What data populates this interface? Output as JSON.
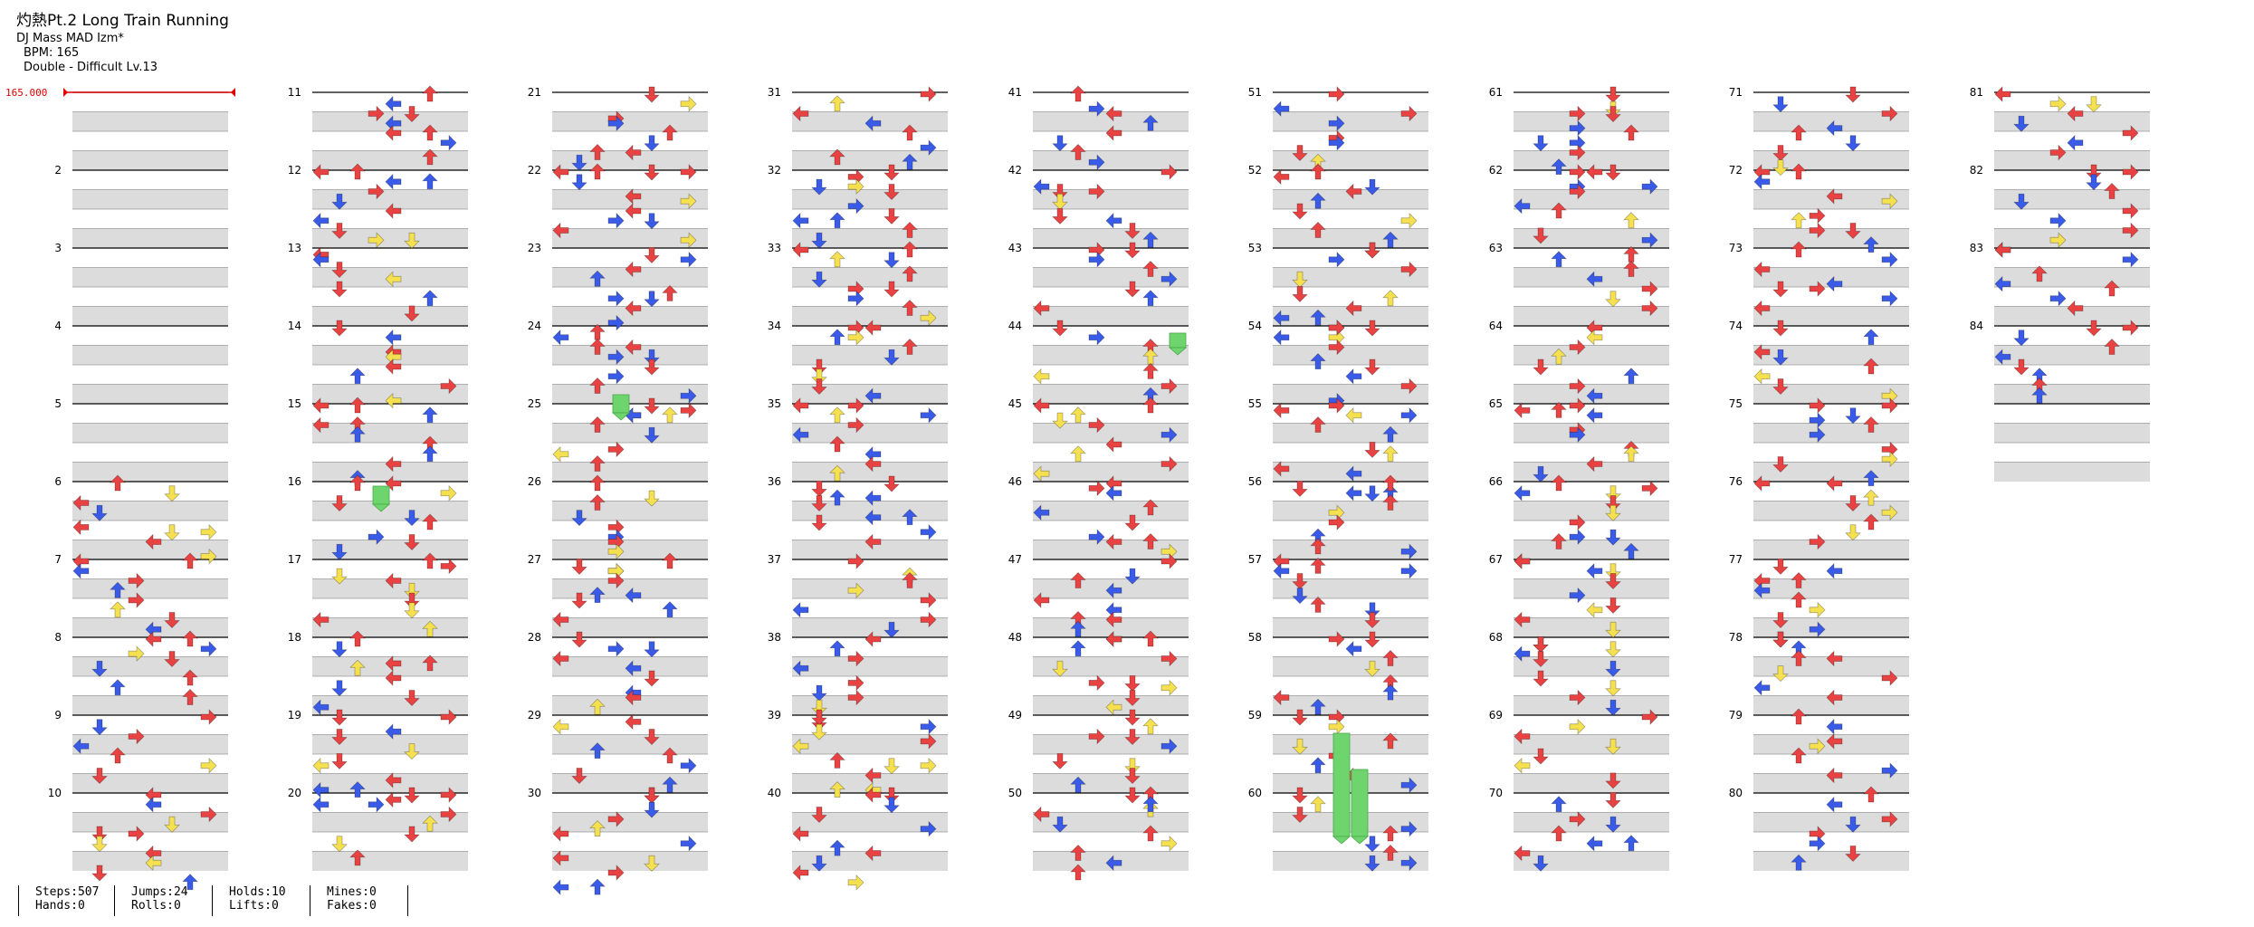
{
  "song": {
    "title": "灼熱Pt.2 Long Train Running",
    "artist": "DJ Mass MAD Izm*",
    "bpm_text": "BPM: 165",
    "difficulty_text": "Double - Difficult  Lv.13"
  },
  "bpm_marker": "165.000",
  "colors": {
    "red": "#e84242",
    "blue": "#3a5be8",
    "yellow": "#f5e050",
    "green": "#6ed46e",
    "purple": "#b44ee0",
    "marker": "#e00000"
  },
  "columns": 9,
  "measures_per_column": 10,
  "total_measures": 84,
  "stats": [
    {
      "a": "Steps:507",
      "b": "Hands:0"
    },
    {
      "a": "Jumps:24",
      "b": "Rolls:0"
    },
    {
      "a": "Holds:10",
      "b": "Lifts:0"
    },
    {
      "a": "Mines:0",
      "b": "Fakes:0"
    }
  ]
}
